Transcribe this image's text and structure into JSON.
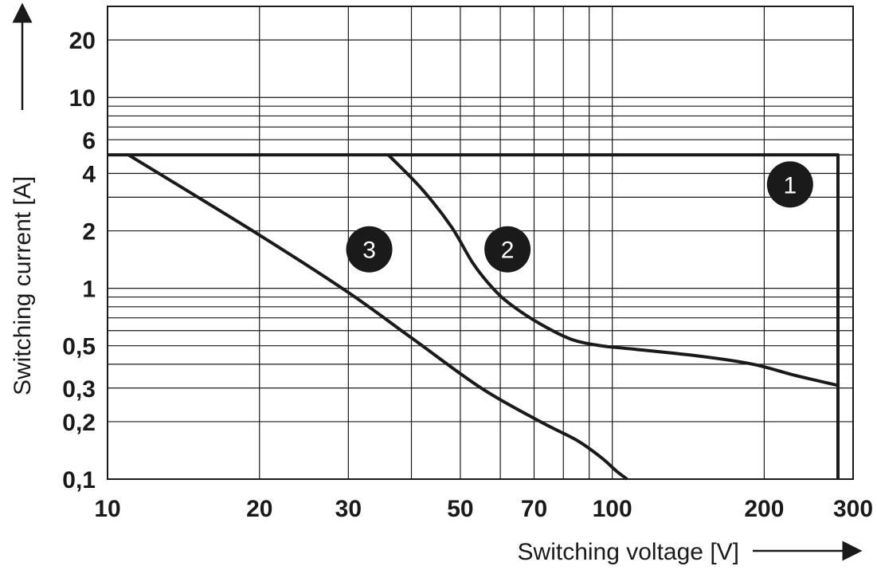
{
  "chart_data": {
    "type": "line",
    "title": "",
    "xlabel": "Switching voltage [V]",
    "ylabel": "Switching current [A]",
    "x_scale": "log",
    "y_scale": "log",
    "xlim": [
      10,
      300
    ],
    "ylim": [
      0.1,
      30
    ],
    "x_ticks": [
      {
        "value": 10,
        "label": "10"
      },
      {
        "value": 20,
        "label": "20"
      },
      {
        "value": 30,
        "label": "30"
      },
      {
        "value": 50,
        "label": "50"
      },
      {
        "value": 70,
        "label": "70"
      },
      {
        "value": 100,
        "label": "100"
      },
      {
        "value": 200,
        "label": "200"
      },
      {
        "value": 300,
        "label": "300"
      }
    ],
    "y_ticks": [
      {
        "value": 0.1,
        "label": "0,1"
      },
      {
        "value": 0.2,
        "label": "0,2"
      },
      {
        "value": 0.3,
        "label": "0,3"
      },
      {
        "value": 0.5,
        "label": "0,5"
      },
      {
        "value": 1,
        "label": "1"
      },
      {
        "value": 2,
        "label": "2"
      },
      {
        "value": 4,
        "label": "4"
      },
      {
        "value": 6,
        "label": "6"
      },
      {
        "value": 10,
        "label": "10"
      },
      {
        "value": 20,
        "label": "20"
      }
    ],
    "x_gridlines": [
      10,
      20,
      30,
      40,
      50,
      60,
      70,
      80,
      90,
      100,
      200,
      300
    ],
    "y_gridlines": [
      0.1,
      0.2,
      0.3,
      0.4,
      0.5,
      0.6,
      0.7,
      0.8,
      0.9,
      1,
      2,
      3,
      4,
      5,
      6,
      7,
      8,
      9,
      10,
      20
    ],
    "grid": true,
    "series": [
      {
        "name": "1",
        "label_at": {
          "x": 225,
          "y": 3.5
        },
        "points": [
          [
            10,
            5
          ],
          [
            280,
            5
          ],
          [
            280,
            0.1
          ]
        ]
      },
      {
        "name": "2",
        "label_at": {
          "x": 62,
          "y": 1.6
        },
        "points": [
          [
            36,
            5
          ],
          [
            42,
            3.3
          ],
          [
            48,
            2.1
          ],
          [
            53,
            1.35
          ],
          [
            58,
            1.0
          ],
          [
            63,
            0.82
          ],
          [
            72,
            0.65
          ],
          [
            83,
            0.54
          ],
          [
            95,
            0.5
          ],
          [
            110,
            0.48
          ],
          [
            150,
            0.44
          ],
          [
            190,
            0.4
          ],
          [
            230,
            0.35
          ],
          [
            280,
            0.31
          ]
        ]
      },
      {
        "name": "3",
        "label_at": {
          "x": 33,
          "y": 1.6
        },
        "points": [
          [
            11,
            5
          ],
          [
            20,
            1.9
          ],
          [
            30,
            0.95
          ],
          [
            40,
            0.55
          ],
          [
            55,
            0.3
          ],
          [
            72,
            0.2
          ],
          [
            85,
            0.16
          ],
          [
            95,
            0.13
          ],
          [
            102,
            0.11
          ],
          [
            107,
            0.1
          ]
        ]
      }
    ]
  }
}
